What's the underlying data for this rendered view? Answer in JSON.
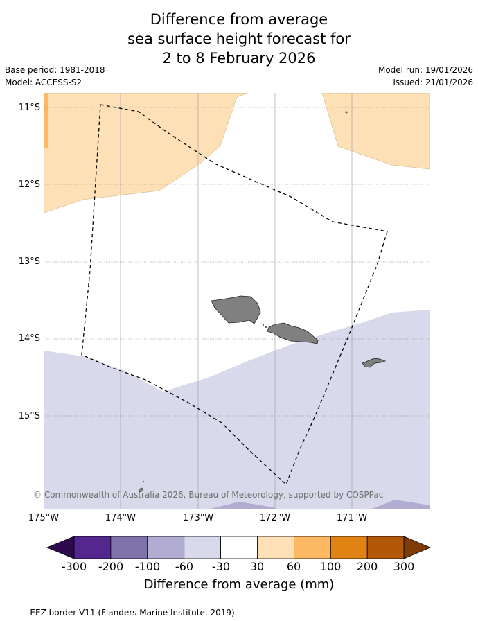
{
  "title": {
    "line1": "Difference from average",
    "line2": "sea surface height forecast for",
    "line3": "2 to 8 February 2026"
  },
  "meta": {
    "base_period": "Base period: 1981-2018",
    "model": "Model: ACCESS-S2",
    "model_run": "Model run: 19/01/2026",
    "issued": "Issued: 21/01/2026"
  },
  "axes": {
    "latitudes": [
      "11°S",
      "12°S",
      "13°S",
      "14°S",
      "15°S"
    ],
    "longitudes": [
      "175°W",
      "174°W",
      "173°W",
      "172°W",
      "171°W"
    ]
  },
  "credit": "© Commonwealth of Australia 2026, Bureau of Meteorology, supported by COSPPac",
  "colorbar": {
    "title": "Difference from average (mm)",
    "ticks": [
      "-300",
      "-200",
      "-100",
      "-60",
      "-30",
      "30",
      "60",
      "100",
      "200",
      "300"
    ],
    "colors": {
      "below_min": "#2d0a4e",
      "bin1": "#54278f",
      "bin2": "#8073ac",
      "bin3": "#b2abd2",
      "bin4": "#d8daeb",
      "bin5": "#ffffff",
      "bin6": "#fee0b6",
      "bin7": "#fdb863",
      "bin8": "#e08214",
      "bin9": "#b35806",
      "above_max": "#7f3b08"
    }
  },
  "footnote": "--  --  -- EEZ border V11 (Flanders Marine Institute, 2019)."
}
